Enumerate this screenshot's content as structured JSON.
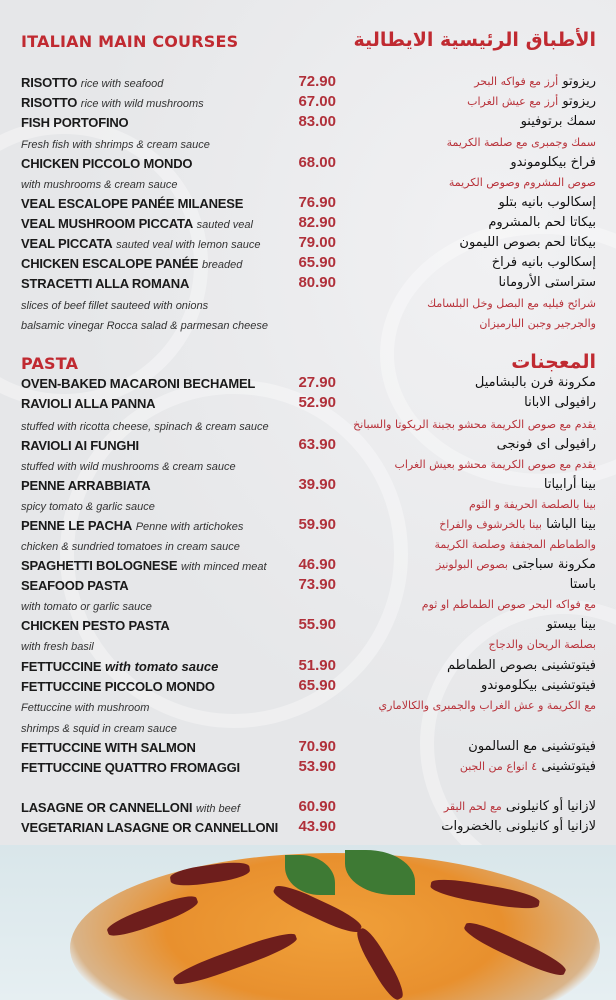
{
  "main_courses": {
    "title_en": "ITALIAN MAIN COURSES",
    "title_ar": "الأطباق الرئيسية الايطالية",
    "rows": [
      {
        "name": "RISOTTO",
        "desc": "rice with seafood",
        "price": "72.90",
        "ar": "ريزوتو",
        "ar_red": "أرز مع فواكه البحر"
      },
      {
        "name": "RISOTTO",
        "desc": "rice with wild mushrooms",
        "price": "67.00",
        "ar": "ريزوتو",
        "ar_red": "أرز مع عيش الغراب"
      },
      {
        "name": "FISH PORTOFINO",
        "price": "83.00",
        "ar": "سمك برتوفينو"
      },
      {
        "line": "Fresh fish with shrimps & cream sauce",
        "ar_red": "سمك وجمبرى مع صلصة الكريمة"
      },
      {
        "name": "CHICKEN PICCOLO MONDO",
        "price": "68.00",
        "ar": "فراخ بيكلوموندو"
      },
      {
        "line": "with mushrooms & cream sauce",
        "ar_red": "صوص المشروم وصوص الكريمة"
      },
      {
        "name": "VEAL ESCALOPE PANÉE MILANESE",
        "price": "76.90",
        "ar": "إسكالوب بانيه بتلو"
      },
      {
        "name": "VEAL MUSHROOM PICCATA",
        "desc": "sauted veal",
        "price": "82.90",
        "ar": "بيكاتا لحم بالمشروم"
      },
      {
        "name": "VEAL PICCATA",
        "desc": "sauted veal with lemon sauce",
        "price": "79.00",
        "ar": "بيكاتا لحم بصوص الليمون"
      },
      {
        "name": "CHICKEN ESCALOPE PANÉE",
        "desc": "breaded",
        "price": "65.90",
        "ar": "إسكالوب بانيه فراخ"
      },
      {
        "name": "STRACETTI ALLA ROMANA",
        "price": "80.90",
        "ar": "ستراستى الأرومانا"
      },
      {
        "line": "slices of beef fillet sauteed with onions",
        "ar_red": "شرائح فيليه مع البصل وخل البلسامك"
      },
      {
        "line": "balsamic vinegar Rocca salad & parmesan cheese",
        "ar_red": "والجرجير وجبن البارميزان"
      }
    ]
  },
  "pasta": {
    "title_en": "PASTA",
    "title_ar": "المعجنات",
    "rows": [
      {
        "name": "OVEN-BAKED MACARONI BECHAMEL",
        "price": "27.90",
        "ar": "مكرونة فرن بالبشاميل"
      },
      {
        "name": "RAVIOLI ALLA PANNA",
        "price": "52.90",
        "ar": "رافيولى الابانا"
      },
      {
        "line": "stuffed with ricotta cheese, spinach & cream sauce",
        "ar_red": "يقدم مع صوص الكريمة محشو بجبنة الريكوتا والسبانخ"
      },
      {
        "name": "RAVIOLI AI FUNGHI",
        "price": "63.90",
        "ar": "رافيولى اى فونجى"
      },
      {
        "line": "stuffed with wild mushrooms & cream sauce",
        "ar_red": "يقدم مع صوص الكريمة محشو بعيش الغراب"
      },
      {
        "name": "PENNE ARRABBIATA",
        "price": "39.90",
        "ar": "بينا أرابياتا"
      },
      {
        "line": "spicy tomato & garlic sauce",
        "ar_red": "بينا بالصلصة الحريفة و الثوم"
      },
      {
        "name": "PENNE LE PACHA",
        "desc": "Penne with artichokes",
        "price": "59.90",
        "ar": "بينا الباشا",
        "ar_red": "بينا بالخرشوف والفراخ"
      },
      {
        "line": "chicken & sundried tomatoes in cream sauce",
        "ar_red": "والطماطم المجففة وصلصة الكريمة"
      },
      {
        "name": "SPAGHETTI BOLOGNESE",
        "desc": "with minced meat",
        "price": "46.90",
        "ar": "مكرونة سباجتى",
        "ar_red": "بصوص البولونيز"
      },
      {
        "name": "SEAFOOD PASTA",
        "price": "73.90",
        "ar": "باستا"
      },
      {
        "line": "with tomato or garlic sauce",
        "ar_red": "مع فواكه البحر  صوص الطماطم او ثوم"
      },
      {
        "name": "CHICKEN PESTO PASTA",
        "price": "55.90",
        "ar": "بينا بيستو"
      },
      {
        "line": "with fresh basil",
        "ar_red": "بصلصة الريحان والدجاج"
      },
      {
        "name": "FETTUCCINE",
        "desc_bold_italic": "with tomato sauce",
        "price": "51.90",
        "ar": "فيتوتشينى بصوص الطماطم"
      },
      {
        "name": "FETTUCCINE PICCOLO MONDO",
        "price": "65.90",
        "ar": "فيتوتشينى بيكلوموندو"
      },
      {
        "line": "Fettuccine with mushroom",
        "ar_red": "مع الكريمة و عش الغراب والجمبرى والكالاماري"
      },
      {
        "line": " shrimps & squid in cream sauce"
      },
      {
        "name": "FETTUCCINE WITH SALMON",
        "price": "70.90",
        "ar": "فيتوتشينى مع السالمون"
      },
      {
        "name": "FETTUCCINE QUATTRO FROMAGGI",
        "price": "53.90",
        "ar": "فيتوتشينى",
        "ar_red": "٤ انواع من الجبن"
      },
      {
        "name": "LASAGNE OR CANNELLONI",
        "desc": "with beef",
        "price": "60.90",
        "ar": "لازانيا  أو كانيلونى",
        "ar_red": "مع لحم البقر"
      },
      {
        "name": "VEGETARIAN LASAGNE OR CANNELLONI",
        "price": "43.90",
        "ar": "لازانيا أو كانيلونى بالخضروات"
      }
    ]
  },
  "colors": {
    "accent": "#c02a31",
    "price": "#b0303a",
    "background": "#e8e9eb"
  },
  "photo": "penne-with-sundried-tomatoes-and-basil"
}
